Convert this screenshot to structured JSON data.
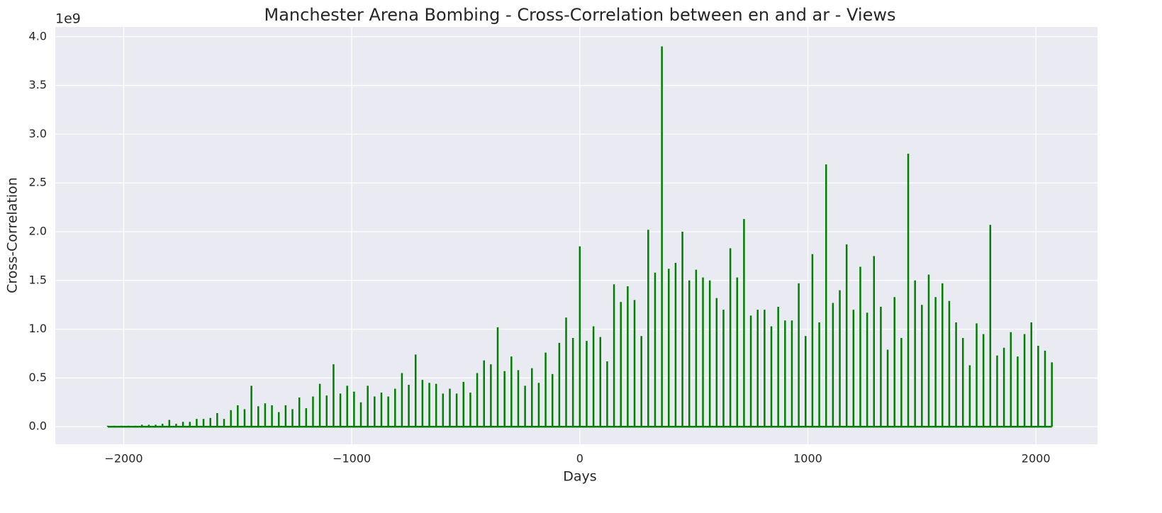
{
  "chart_data": {
    "type": "stem",
    "title": "Manchester Arena Bombing - Cross-Correlation between en and ar - Views",
    "xlabel": "Days",
    "ylabel": "Cross-Correlation",
    "y_offset_label": "1e9",
    "color": "#008000",
    "grid": true,
    "xlim": [
      -2300,
      2270
    ],
    "ylim": [
      -0.18,
      4.1
    ],
    "xticks": [
      {
        "value": -2000,
        "label": "−2000"
      },
      {
        "value": -1000,
        "label": "−1000"
      },
      0,
      1000,
      2000
    ],
    "yticks": [
      {
        "value": 0,
        "label": "0.0"
      },
      0.5,
      {
        "value": 1,
        "label": "1.0"
      },
      1.5,
      {
        "value": 2,
        "label": "2.0"
      },
      2.5,
      {
        "value": 3,
        "label": "3.0"
      },
      3.5,
      {
        "value": 4,
        "label": "4.0"
      }
    ],
    "x": [
      -2070,
      -2040,
      -2010,
      -1980,
      -1950,
      -1920,
      -1890,
      -1860,
      -1830,
      -1800,
      -1770,
      -1740,
      -1710,
      -1680,
      -1650,
      -1620,
      -1590,
      -1560,
      -1530,
      -1500,
      -1470,
      -1440,
      -1410,
      -1380,
      -1350,
      -1320,
      -1290,
      -1260,
      -1230,
      -1200,
      -1170,
      -1140,
      -1110,
      -1080,
      -1050,
      -1020,
      -990,
      -960,
      -930,
      -900,
      -870,
      -840,
      -810,
      -780,
      -750,
      -720,
      -690,
      -660,
      -630,
      -600,
      -570,
      -540,
      -510,
      -480,
      -450,
      -420,
      -390,
      -360,
      -330,
      -300,
      -270,
      -240,
      -210,
      -180,
      -150,
      -120,
      -90,
      -60,
      -30,
      0,
      30,
      60,
      90,
      120,
      150,
      180,
      210,
      240,
      270,
      300,
      330,
      360,
      390,
      420,
      450,
      480,
      510,
      540,
      570,
      600,
      630,
      660,
      690,
      720,
      750,
      780,
      810,
      840,
      870,
      900,
      930,
      960,
      990,
      1020,
      1050,
      1080,
      1110,
      1140,
      1170,
      1200,
      1230,
      1260,
      1290,
      1320,
      1350,
      1380,
      1410,
      1440,
      1470,
      1500,
      1530,
      1560,
      1590,
      1620,
      1650,
      1680,
      1710,
      1740,
      1770,
      1800,
      1830,
      1860,
      1890,
      1920,
      1950,
      1980,
      2010,
      2040,
      2070
    ],
    "values": [
      0.01,
      0.01,
      0.01,
      0.01,
      0.01,
      0.02,
      0.02,
      0.02,
      0.03,
      0.07,
      0.03,
      0.05,
      0.05,
      0.08,
      0.08,
      0.09,
      0.14,
      0.08,
      0.17,
      0.22,
      0.18,
      0.42,
      0.21,
      0.24,
      0.22,
      0.15,
      0.22,
      0.18,
      0.3,
      0.19,
      0.31,
      0.44,
      0.32,
      0.64,
      0.34,
      0.42,
      0.36,
      0.25,
      0.42,
      0.31,
      0.35,
      0.31,
      0.39,
      0.55,
      0.43,
      0.74,
      0.48,
      0.45,
      0.44,
      0.34,
      0.39,
      0.34,
      0.46,
      0.35,
      0.55,
      0.68,
      0.64,
      1.02,
      0.57,
      0.72,
      0.58,
      0.42,
      0.6,
      0.45,
      0.76,
      0.54,
      0.86,
      1.12,
      0.91,
      1.85,
      0.88,
      1.03,
      0.92,
      0.67,
      1.46,
      1.28,
      1.44,
      1.3,
      0.93,
      2.02,
      1.58,
      3.9,
      1.62,
      1.68,
      2.0,
      1.5,
      1.61,
      1.53,
      1.5,
      1.32,
      1.2,
      1.83,
      1.53,
      2.13,
      1.14,
      1.2,
      1.2,
      1.03,
      1.23,
      1.09,
      1.09,
      1.47,
      0.93,
      1.77,
      1.07,
      2.69,
      1.27,
      1.4,
      1.87,
      1.2,
      1.64,
      1.17,
      1.75,
      1.23,
      0.79,
      1.33,
      0.91,
      2.8,
      1.5,
      1.25,
      1.56,
      1.33,
      1.47,
      1.29,
      1.07,
      0.91,
      0.63,
      1.06,
      0.95,
      2.07,
      0.73,
      0.81,
      0.97,
      0.72,
      0.95,
      1.07,
      0.83,
      0.78,
      0.66
    ]
  }
}
